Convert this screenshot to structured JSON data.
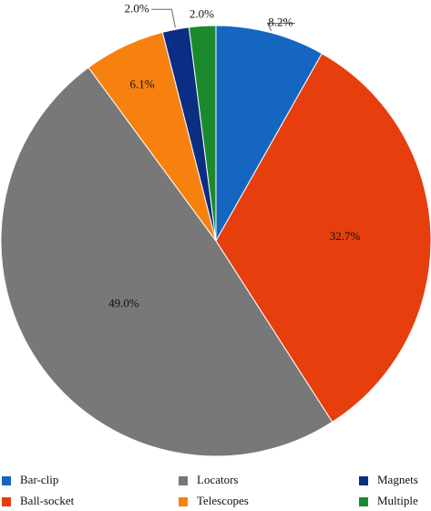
{
  "chart_data": {
    "type": "pie",
    "series": [
      {
        "name": "Bar-clip",
        "color": "#1466c0",
        "values": [
          8.2
        ],
        "value_labels": [
          "8.2%"
        ]
      },
      {
        "name": "Ball-socket",
        "color": "#e63e0d",
        "values": [
          32.7
        ],
        "value_labels": [
          "32.7%"
        ]
      },
      {
        "name": "Locators",
        "color": "#787878",
        "values": [
          49.0
        ],
        "value_labels": [
          "49.0%"
        ]
      },
      {
        "name": "Telescopes",
        "color": "#f7810f",
        "values": [
          6.1
        ],
        "value_labels": [
          "6.1%"
        ]
      },
      {
        "name": "Magnets",
        "color": "#0b2d84",
        "values": [
          2.0
        ],
        "value_labels": [
          "2.0%"
        ]
      },
      {
        "name": "Multiple",
        "color": "#1b8a2c",
        "values": [
          2.0
        ],
        "value_labels": [
          "2.0%"
        ]
      }
    ],
    "legend": "bottom"
  }
}
